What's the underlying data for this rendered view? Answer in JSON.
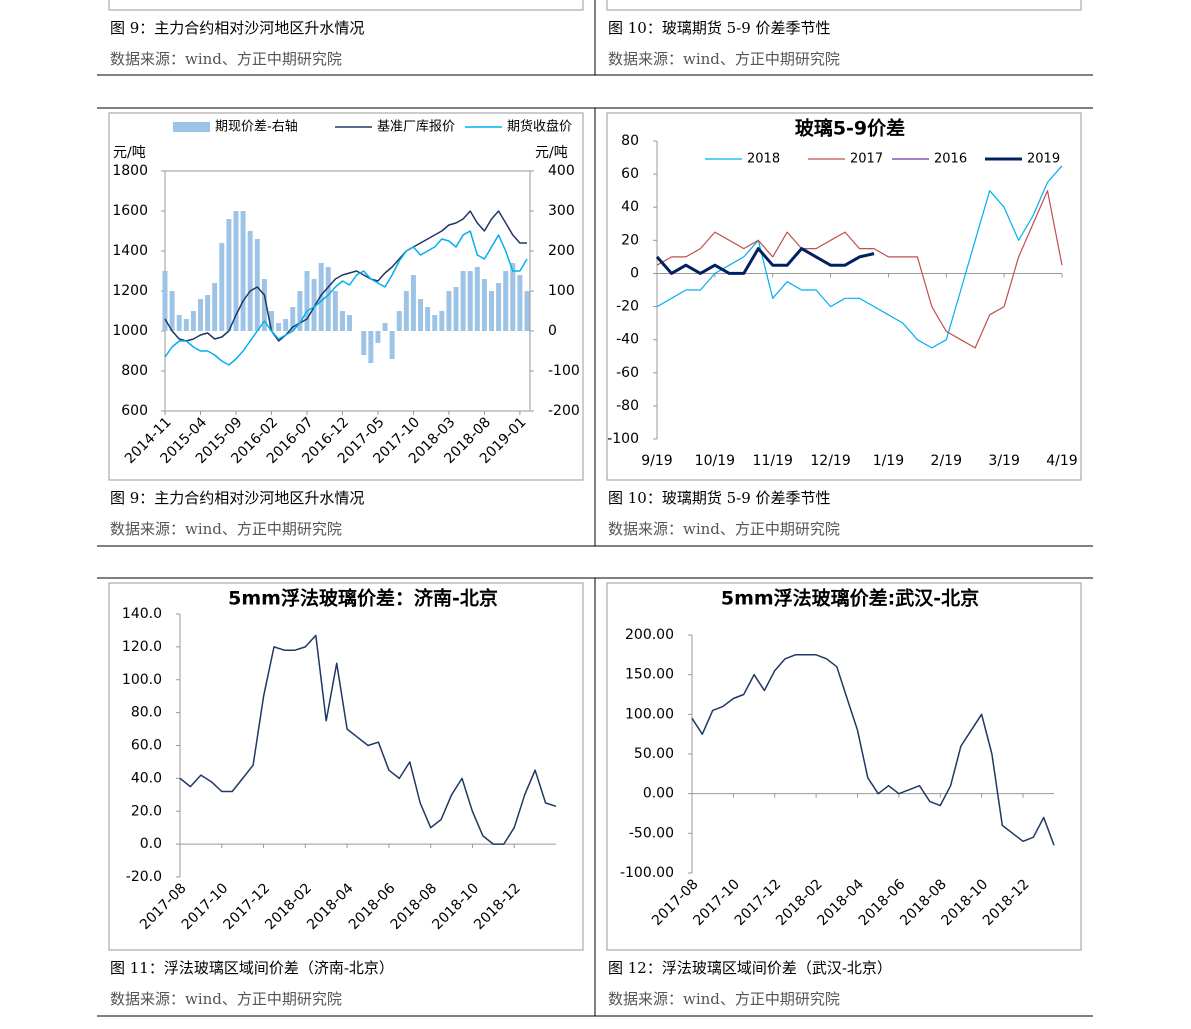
{
  "top_figures": [
    {
      "caption": "图 9：主力合约相对沙河地区升水情况",
      "source": "数据来源：wind、方正中期研究院"
    },
    {
      "caption": "图 10：玻璃期货 5-9 价差季节性",
      "source": "数据来源：wind、方正中期研究院"
    }
  ],
  "figures": [
    {
      "caption": "图 9：主力合约相对沙河地区升水情况",
      "source": "数据来源：wind、方正中期研究院"
    },
    {
      "caption": "图 10：玻璃期货 5-9 价差季节性",
      "source": "数据来源：wind、方正中期研究院"
    },
    {
      "caption": "图 11：浮法玻璃区域间价差（济南-北京）",
      "source": "数据来源：wind、方正中期研究院"
    },
    {
      "caption": "图 12：浮法玻璃区域间价差（武汉-北京）",
      "source": "数据来源：wind、方正中期研究院"
    }
  ],
  "chart_data": [
    {
      "type": "combo",
      "ylabel": "元/吨",
      "y2label": "元/吨",
      "grid": false,
      "categories": [
        "2014-11",
        null,
        null,
        null,
        null,
        "2015-04",
        null,
        null,
        null,
        null,
        "2015-09",
        null,
        null,
        null,
        null,
        "2016-02",
        null,
        null,
        null,
        null,
        "2016-07",
        null,
        null,
        null,
        null,
        "2016-12",
        null,
        null,
        null,
        null,
        "2017-05",
        null,
        null,
        null,
        null,
        "2017-10",
        null,
        null,
        null,
        null,
        "2018-03",
        null,
        null,
        null,
        null,
        "2018-08",
        null,
        null,
        null,
        null,
        "2019-01",
        null
      ],
      "ylim": [
        600,
        1800
      ],
      "yticks": [
        600,
        800,
        1000,
        1200,
        1400,
        1600,
        1800
      ],
      "y2lim": [
        -200,
        400
      ],
      "y2ticks": [
        -200,
        -100,
        0,
        100,
        200,
        300,
        400
      ],
      "series": [
        {
          "name": "期现价差-右轴",
          "kind": "bar",
          "axis": "y2",
          "color": "#9dc3e6",
          "values": [
            150,
            100,
            40,
            30,
            50,
            80,
            90,
            120,
            220,
            280,
            300,
            300,
            250,
            230,
            130,
            50,
            20,
            30,
            60,
            100,
            150,
            130,
            170,
            160,
            100,
            50,
            40,
            0,
            -60,
            -80,
            -30,
            20,
            -70,
            50,
            100,
            140,
            80,
            60,
            40,
            50,
            100,
            110,
            150,
            150,
            160,
            130,
            100,
            120,
            150,
            170,
            140,
            100
          ]
        },
        {
          "name": "基准厂库报价",
          "kind": "line",
          "color": "#1f3864",
          "values": [
            1060,
            1000,
            960,
            950,
            960,
            980,
            990,
            960,
            970,
            1000,
            1080,
            1150,
            1200,
            1220,
            1180,
            1000,
            950,
            980,
            1020,
            1040,
            1060,
            1120,
            1180,
            1220,
            1260,
            1280,
            1290,
            1300,
            1280,
            1260,
            1250,
            1290,
            1320,
            1360,
            1400,
            1420,
            1440,
            1460,
            1480,
            1500,
            1530,
            1540,
            1560,
            1600,
            1540,
            1500,
            1560,
            1600,
            1540,
            1480,
            1440,
            1440
          ]
        },
        {
          "name": "期货收盘价",
          "kind": "line",
          "color": "#00b0f0",
          "values": [
            870,
            920,
            950,
            950,
            920,
            900,
            900,
            880,
            850,
            830,
            860,
            900,
            950,
            1000,
            1050,
            1000,
            960,
            980,
            1000,
            1040,
            1100,
            1120,
            1150,
            1180,
            1220,
            1250,
            1230,
            1280,
            1300,
            1260,
            1240,
            1220,
            1280,
            1350,
            1400,
            1420,
            1380,
            1400,
            1420,
            1460,
            1450,
            1420,
            1480,
            1500,
            1380,
            1360,
            1420,
            1480,
            1400,
            1300,
            1300,
            1360
          ]
        }
      ]
    },
    {
      "type": "line",
      "title": "玻璃5-9价差",
      "grid": false,
      "categories": [
        "9/19",
        null,
        null,
        null,
        "10/19",
        null,
        null,
        null,
        "11/19",
        null,
        null,
        null,
        "12/19",
        null,
        null,
        null,
        "1/19",
        null,
        null,
        null,
        "2/19",
        null,
        null,
        null,
        "3/19",
        null,
        null,
        null,
        "4/19"
      ],
      "ylim": [
        -100,
        80
      ],
      "yticks": [
        -100,
        -80,
        -60,
        -40,
        -20,
        0,
        20,
        40,
        60,
        80
      ],
      "series": [
        {
          "name": "2018",
          "color": "#00b0f0",
          "width": 1.2,
          "values": [
            -20,
            -15,
            -10,
            -10,
            0,
            5,
            10,
            20,
            -15,
            -5,
            -10,
            -10,
            -20,
            -15,
            -15,
            -20,
            -25,
            -30,
            -40,
            -45,
            -40,
            -10,
            20,
            50,
            40,
            20,
            35,
            55,
            65
          ]
        },
        {
          "name": "2017",
          "color": "#c0504d",
          "width": 1.2,
          "values": [
            5,
            10,
            10,
            15,
            25,
            20,
            15,
            20,
            10,
            25,
            15,
            15,
            20,
            25,
            15,
            15,
            10,
            10,
            10,
            -20,
            -35,
            -40,
            -45,
            -25,
            -20,
            10,
            30,
            50,
            5
          ]
        },
        {
          "name": "2016",
          "color": "#7030a0",
          "width": 1.2,
          "values": [
            null,
            null,
            null,
            null,
            null,
            null,
            null,
            null,
            null,
            null,
            null,
            null,
            null,
            null,
            null,
            null,
            null,
            null,
            null,
            null,
            null,
            null,
            null,
            null,
            null,
            null,
            null,
            null,
            null
          ]
        },
        {
          "name": "2019",
          "color": "#002060",
          "width": 3,
          "values": [
            10,
            0,
            5,
            0,
            5,
            0,
            0,
            15,
            5,
            5,
            15,
            10,
            5,
            5,
            10,
            12,
            null,
            null,
            null,
            null,
            null,
            null,
            null,
            null,
            null,
            null,
            null,
            null,
            null
          ]
        }
      ]
    },
    {
      "type": "line",
      "title": "5mm浮法玻璃价差：济南-北京",
      "grid": false,
      "categories": [
        "2017-08",
        null,
        null,
        null,
        "2017-10",
        null,
        null,
        null,
        "2017-12",
        null,
        null,
        null,
        "2018-02",
        null,
        null,
        null,
        "2018-04",
        null,
        null,
        null,
        "2018-06",
        null,
        null,
        null,
        "2018-08",
        null,
        null,
        null,
        "2018-10",
        null,
        null,
        null,
        "2018-12",
        null,
        null,
        null,
        null
      ],
      "ylim": [
        -20,
        140
      ],
      "yticks": [
        {
          "value": -20,
          "label": "-20.0"
        },
        {
          "value": 0,
          "label": "0.0"
        },
        {
          "value": 20,
          "label": "20.0"
        },
        {
          "value": 40,
          "label": "40.0"
        },
        {
          "value": 60,
          "label": "60.0"
        },
        {
          "value": 80,
          "label": "80.0"
        },
        {
          "value": 100,
          "label": "100.0"
        },
        {
          "value": 120,
          "label": "120.0"
        },
        {
          "value": 140,
          "label": "140.0"
        }
      ],
      "series": [
        {
          "color": "#1f3864",
          "width": 1.5,
          "values": [
            40,
            35,
            42,
            38,
            32,
            32,
            40,
            48,
            90,
            120,
            118,
            118,
            120,
            127,
            75,
            110,
            70,
            65,
            60,
            62,
            45,
            40,
            50,
            25,
            10,
            15,
            30,
            40,
            20,
            5,
            0,
            0,
            10,
            30,
            45,
            25,
            23
          ]
        }
      ]
    },
    {
      "type": "line",
      "title": "5mm浮法玻璃价差:武汉-北京",
      "grid": false,
      "categories": [
        "2017-08",
        null,
        null,
        null,
        "2017-10",
        null,
        null,
        null,
        "2017-12",
        null,
        null,
        null,
        "2018-02",
        null,
        null,
        null,
        "2018-04",
        null,
        null,
        null,
        "2018-06",
        null,
        null,
        null,
        "2018-08",
        null,
        null,
        null,
        "2018-10",
        null,
        null,
        null,
        "2018-12",
        null,
        null,
        null
      ],
      "ylim": [
        -100,
        200
      ],
      "yticks": [
        {
          "value": -100,
          "label": "-100.00"
        },
        {
          "value": -50,
          "label": "-50.00"
        },
        {
          "value": 0,
          "label": "0.00"
        },
        {
          "value": 50,
          "label": "50.00"
        },
        {
          "value": 100,
          "label": "100.00"
        },
        {
          "value": 150,
          "label": "150.00"
        },
        {
          "value": 200,
          "label": "200.00"
        }
      ],
      "series": [
        {
          "color": "#1f3864",
          "width": 1.5,
          "values": [
            95,
            75,
            105,
            110,
            120,
            125,
            150,
            130,
            155,
            170,
            175,
            175,
            175,
            170,
            160,
            120,
            80,
            20,
            0,
            10,
            0,
            5,
            10,
            -10,
            -15,
            10,
            60,
            80,
            100,
            50,
            -40,
            -50,
            -60,
            -55,
            -30,
            -65
          ]
        }
      ]
    }
  ]
}
